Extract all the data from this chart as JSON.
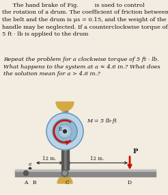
{
  "line1": "      The hand brake of Fig.         is used to control",
  "line2": "the rotation of a drum. The coefficient of friction between",
  "line3": "the belt and the drum is μs = 0.15, and the weight of the",
  "line4": "handle may be neglected. If a counterclockwise torque of",
  "line5": "5 ft · lb is applied to the drum",
  "body1": "Repeat the problem for a clockwise torque of 5 ft · lb.",
  "body2": "What happens to the system at a ≈ 4.6 in.? What does",
  "body3": "the solution mean for a > 4.6 in.?",
  "M_label": "M = 5 lb·ft",
  "dim1": "— 12 in. —",
  "dim2": "— 12 in. —",
  "label_A": "A",
  "label_B": "B",
  "label_C": "C",
  "label_D": "D",
  "label_P": "P",
  "label_a": "a",
  "label_E": "E",
  "bg_color": "#f2ede0",
  "text_color": "#111111",
  "gold_color": "#d4a843",
  "drum_blue": "#b8d4e8",
  "drum_blue2": "#90b8d0",
  "drum_blue3": "#a8c4d8",
  "drum_blue4": "#c0d4e0",
  "bar_color": "#888888",
  "rod_color": "#787878",
  "arrow_color": "#cc1100",
  "dim_color": "#222222"
}
